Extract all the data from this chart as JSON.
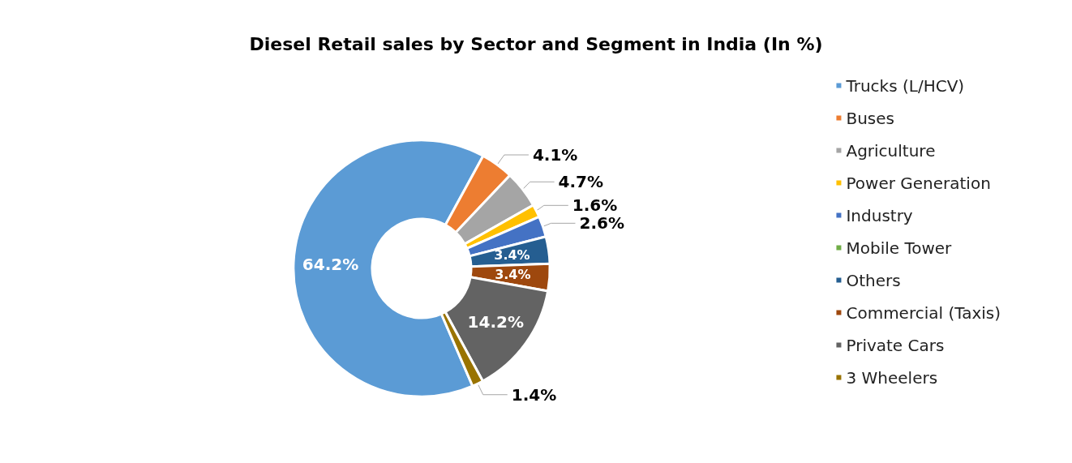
{
  "chart_data": {
    "type": "donut",
    "title": "Diesel Retail sales by Sector and Segment in India (In %)",
    "categories": [
      "Trucks (L/HCV)",
      "Buses",
      "Agriculture",
      "Power Generation",
      "Industry",
      "Mobile Tower",
      "Others",
      "Commercial (Taxis)",
      "Private Cars",
      "3 Wheelers"
    ],
    "values": [
      64.2,
      4.1,
      4.7,
      1.6,
      2.6,
      null,
      3.4,
      3.4,
      14.2,
      1.4
    ],
    "value_labels": [
      "64.2%",
      "4.1%",
      "4.7%",
      "1.6%",
      "2.6%",
      null,
      "3.4%",
      "3.4%",
      "14.2%",
      "1.4%"
    ],
    "colors": [
      "#5b9bd5",
      "#ed7d31",
      "#a5a5a5",
      "#ffc000",
      "#4472c4",
      "#70ad47",
      "#255e91",
      "#9e480e",
      "#636363",
      "#997300"
    ],
    "legend": "right"
  }
}
